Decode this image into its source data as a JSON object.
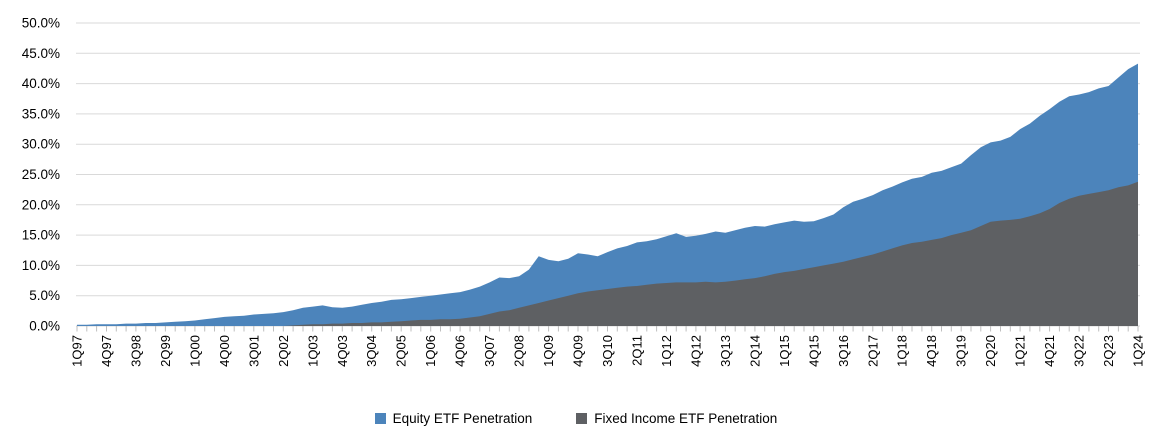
{
  "chart_data": {
    "type": "area",
    "overlapping": true,
    "x": [
      "1Q97",
      "2Q97",
      "3Q97",
      "4Q97",
      "1Q98",
      "2Q98",
      "3Q98",
      "4Q98",
      "1Q99",
      "2Q99",
      "3Q99",
      "4Q99",
      "1Q00",
      "2Q00",
      "3Q00",
      "4Q00",
      "1Q01",
      "2Q01",
      "3Q01",
      "4Q01",
      "1Q02",
      "2Q02",
      "3Q02",
      "4Q02",
      "1Q03",
      "2Q03",
      "3Q03",
      "4Q03",
      "1Q04",
      "2Q04",
      "3Q04",
      "4Q04",
      "1Q05",
      "2Q05",
      "3Q05",
      "4Q05",
      "1Q06",
      "2Q06",
      "3Q06",
      "4Q06",
      "1Q07",
      "2Q07",
      "3Q07",
      "4Q07",
      "1Q08",
      "2Q08",
      "3Q08",
      "4Q08",
      "1Q09",
      "2Q09",
      "3Q09",
      "4Q09",
      "1Q10",
      "2Q10",
      "3Q10",
      "4Q10",
      "1Q11",
      "2Q11",
      "3Q11",
      "4Q11",
      "1Q12",
      "2Q12",
      "3Q12",
      "4Q12",
      "1Q13",
      "2Q13",
      "3Q13",
      "4Q13",
      "1Q14",
      "2Q14",
      "3Q14",
      "4Q14",
      "1Q15",
      "2Q15",
      "3Q15",
      "4Q15",
      "1Q16",
      "2Q16",
      "3Q16",
      "4Q16",
      "1Q17",
      "2Q17",
      "3Q17",
      "4Q17",
      "1Q18",
      "2Q18",
      "3Q18",
      "4Q18",
      "1Q19",
      "2Q19",
      "3Q19",
      "4Q19",
      "1Q20",
      "2Q20",
      "3Q20",
      "4Q20",
      "1Q21",
      "2Q21",
      "3Q21",
      "4Q21",
      "1Q22",
      "2Q22",
      "3Q22",
      "4Q22",
      "1Q23",
      "2Q23",
      "3Q23",
      "4Q23",
      "1Q24"
    ],
    "label_every": 3,
    "series": [
      {
        "name": "Equity ETF Penetration",
        "color": "#4C84BB",
        "values": [
          0.2,
          0.2,
          0.3,
          0.3,
          0.3,
          0.4,
          0.4,
          0.5,
          0.5,
          0.6,
          0.7,
          0.8,
          0.9,
          1.1,
          1.3,
          1.5,
          1.6,
          1.7,
          1.9,
          2.0,
          2.1,
          2.3,
          2.6,
          3.0,
          3.2,
          3.4,
          3.1,
          3.0,
          3.2,
          3.5,
          3.8,
          4.0,
          4.3,
          4.4,
          4.6,
          4.8,
          5.0,
          5.2,
          5.4,
          5.6,
          6.0,
          6.5,
          7.2,
          8.0,
          7.9,
          8.2,
          9.3,
          11.5,
          10.9,
          10.7,
          11.1,
          12.0,
          11.8,
          11.5,
          12.2,
          12.8,
          13.2,
          13.8,
          14.0,
          14.3,
          14.8,
          15.3,
          14.7,
          14.9,
          15.2,
          15.6,
          15.4,
          15.8,
          16.2,
          16.5,
          16.4,
          16.8,
          17.1,
          17.4,
          17.2,
          17.3,
          17.8,
          18.4,
          19.6,
          20.5,
          21.0,
          21.6,
          22.4,
          23.0,
          23.7,
          24.3,
          24.6,
          25.3,
          25.6,
          26.2,
          26.8,
          28.2,
          29.5,
          30.3,
          30.6,
          31.2,
          32.5,
          33.4,
          34.7,
          35.8,
          37.0,
          37.9,
          38.2,
          38.6,
          39.2,
          39.6,
          41.0,
          42.4,
          43.3
        ]
      },
      {
        "name": "Fixed Income ETF Penetration",
        "color": "#5E6063",
        "values": [
          0,
          0,
          0,
          0,
          0,
          0,
          0,
          0,
          0,
          0,
          0,
          0,
          0,
          0,
          0,
          0,
          0,
          0,
          0,
          0,
          0,
          0,
          0.1,
          0.2,
          0.3,
          0.3,
          0.4,
          0.4,
          0.5,
          0.5,
          0.6,
          0.6,
          0.7,
          0.8,
          0.9,
          1.0,
          1.0,
          1.1,
          1.1,
          1.2,
          1.4,
          1.6,
          2.0,
          2.4,
          2.6,
          3.0,
          3.4,
          3.8,
          4.2,
          4.6,
          5.0,
          5.4,
          5.7,
          5.9,
          6.1,
          6.3,
          6.5,
          6.6,
          6.8,
          7.0,
          7.1,
          7.2,
          7.2,
          7.2,
          7.3,
          7.2,
          7.3,
          7.5,
          7.7,
          7.9,
          8.2,
          8.6,
          8.9,
          9.1,
          9.4,
          9.7,
          10.0,
          10.3,
          10.6,
          11.0,
          11.4,
          11.8,
          12.3,
          12.8,
          13.3,
          13.7,
          13.9,
          14.2,
          14.5,
          15.0,
          15.4,
          15.8,
          16.5,
          17.2,
          17.4,
          17.5,
          17.7,
          18.1,
          18.6,
          19.3,
          20.3,
          21.0,
          21.5,
          21.8,
          22.1,
          22.4,
          22.9,
          23.2,
          23.8
        ]
      }
    ],
    "ylim": [
      0,
      50
    ],
    "y_tick_step": 5,
    "y_ticks": [
      "0.0%",
      "5.0%",
      "10.0%",
      "15.0%",
      "20.0%",
      "25.0%",
      "30.0%",
      "35.0%",
      "40.0%",
      "45.0%",
      "50.0%"
    ],
    "grid": true,
    "legend_position": "bottom",
    "title": "",
    "xlabel": "",
    "ylabel": ""
  },
  "colors": {
    "gridline": "#D9D9D9",
    "tick": "#BFBFBF",
    "axis_text": "#000000",
    "background": "#FFFFFF"
  }
}
